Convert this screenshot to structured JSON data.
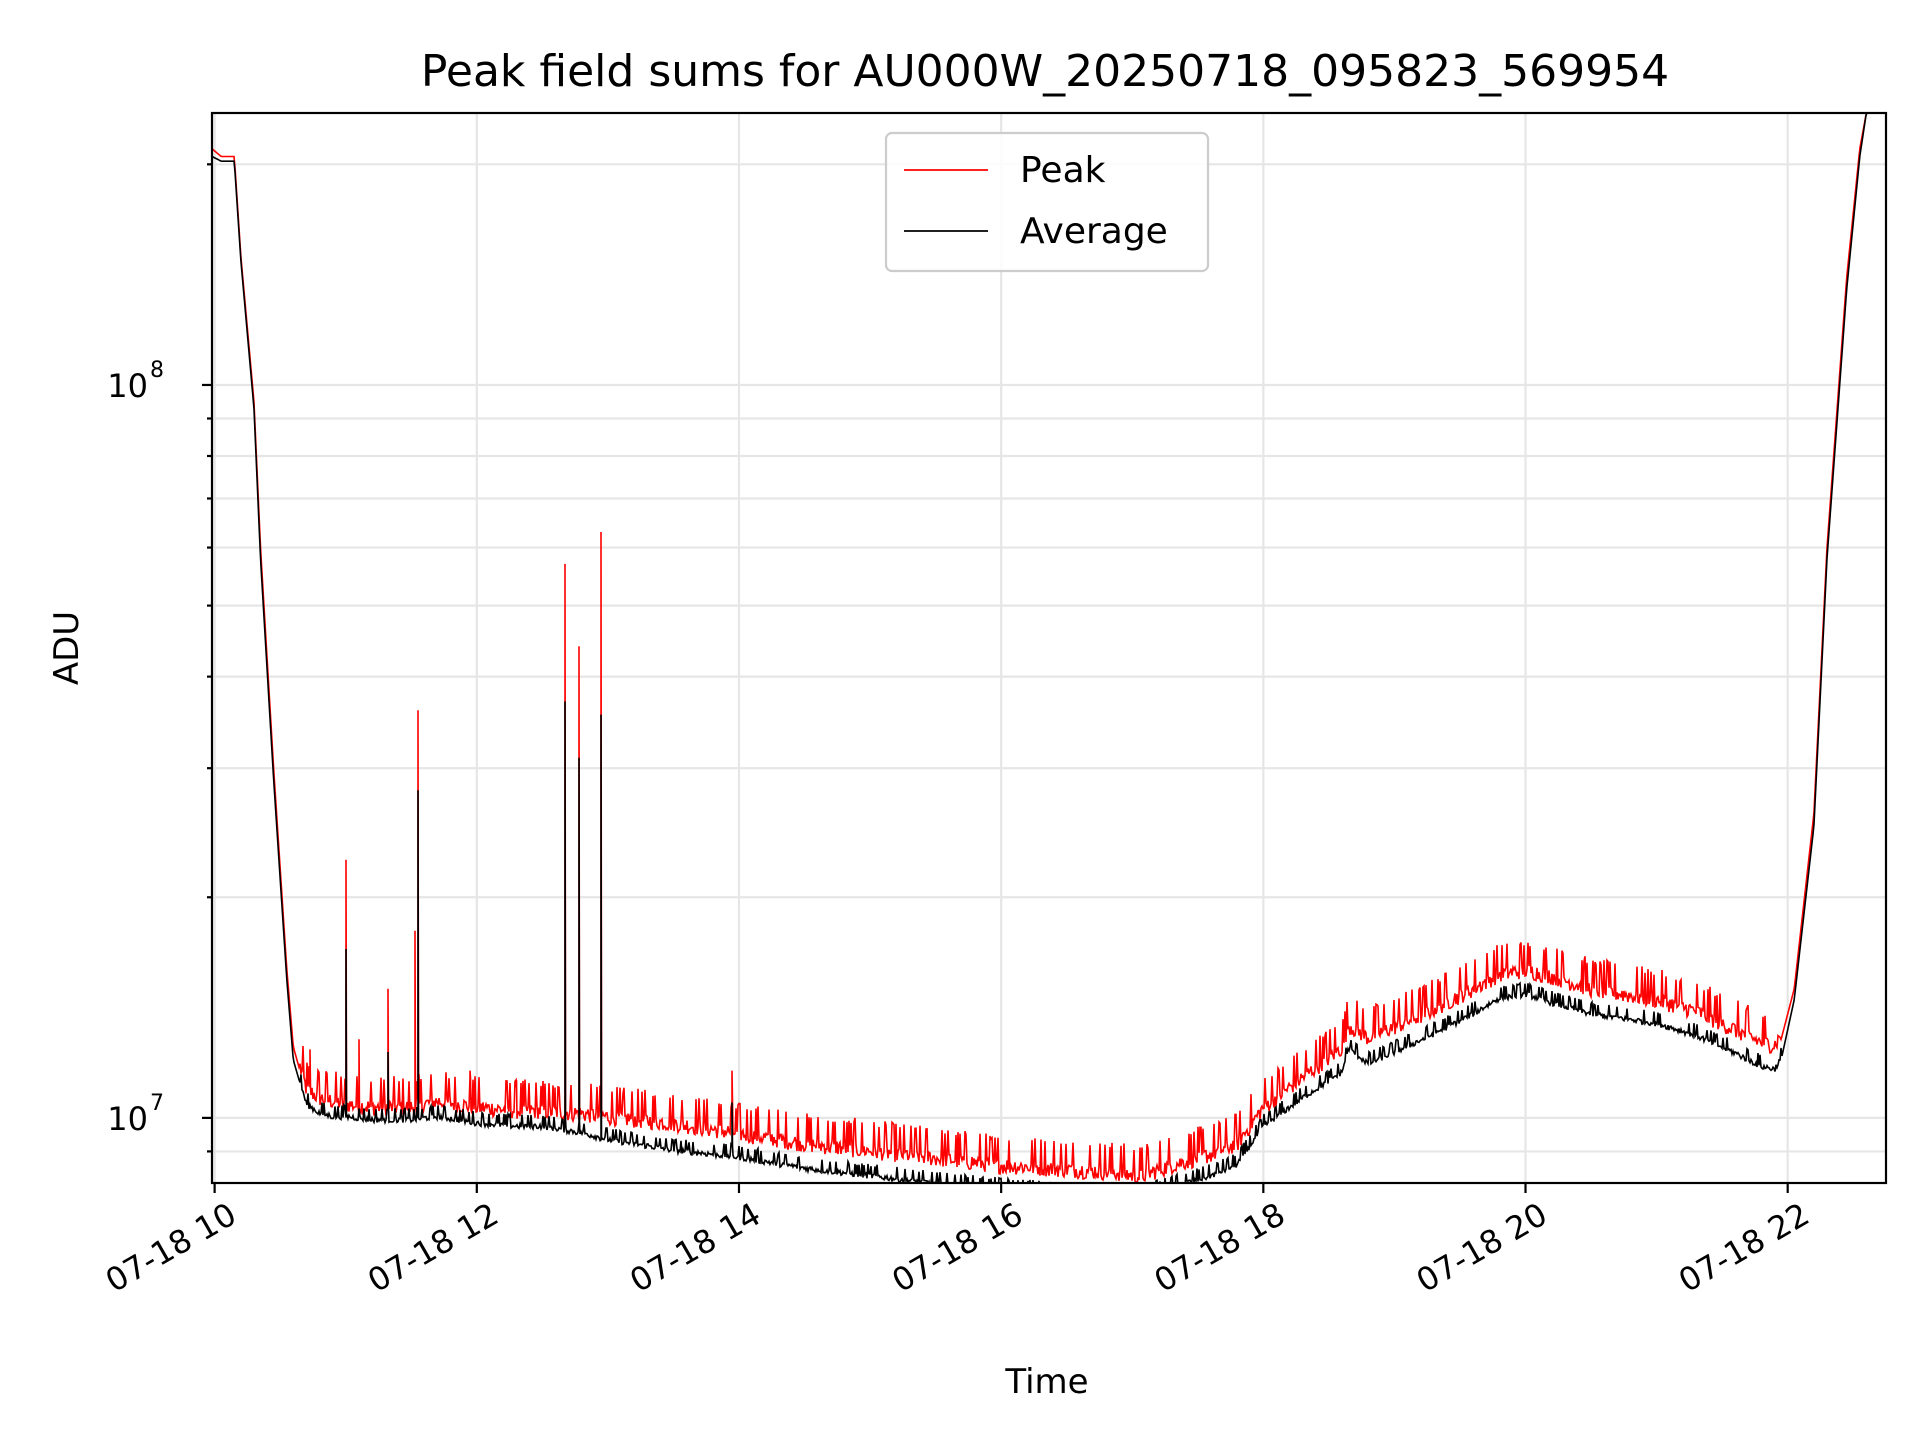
{
  "chart_data": {
    "type": "line",
    "title": "Peak field sums for AU000W_20250718_095823_569954",
    "xlabel": "Time",
    "ylabel": "ADU",
    "yscale": "log",
    "grid": true,
    "legend_placement": "upper-center",
    "x_tick_labels": [
      "07-18 10",
      "07-18 12",
      "07-18 14",
      "07-18 16",
      "07-18 18",
      "07-18 20",
      "07-18 22"
    ],
    "x_tick_hours": [
      10,
      12,
      14,
      16,
      18,
      20,
      22
    ],
    "xlim_hours": [
      9.98,
      22.75
    ],
    "ylim": [
      8150000,
      235000000
    ],
    "y_major_ticks": [
      {
        "value": 10000000,
        "base": "10",
        "exp": "7"
      },
      {
        "value": 100000000,
        "base": "10",
        "exp": "8"
      }
    ],
    "y_minor_ticks": [
      9000000,
      20000000,
      30000000,
      40000000,
      50000000,
      60000000,
      70000000,
      80000000,
      90000000,
      200000000
    ],
    "series": [
      {
        "name": "Peak",
        "color": "#ff0000",
        "hours": [
          9.98,
          10.05,
          10.15,
          10.2,
          10.3,
          10.35,
          10.45,
          10.55,
          10.6,
          10.7,
          10.8,
          10.9,
          11.0,
          11.2,
          11.5,
          11.7,
          12.0,
          12.3,
          12.5,
          12.8,
          13.0,
          13.5,
          14.0,
          14.5,
          15.0,
          15.5,
          16.0,
          16.5,
          16.9,
          17.05,
          17.3,
          17.6,
          17.8,
          18.0,
          18.3,
          18.6,
          18.65,
          18.8,
          19.2,
          19.6,
          19.8,
          20.0,
          20.2,
          20.5,
          21.0,
          21.3,
          21.6,
          21.8,
          21.9,
          21.95,
          22.05,
          22.2,
          22.3,
          22.45,
          22.55,
          22.6,
          22.75
        ],
        "values": [
          210000000,
          205000000,
          205000000,
          150000000,
          95000000,
          60000000,
          30000000,
          16000000,
          12500000,
          10800000,
          10500000,
          10400000,
          10300000,
          10200000,
          10200000,
          10400000,
          10200000,
          10100000,
          10100000,
          10000000,
          9900000,
          9700000,
          9400000,
          9100000,
          8900000,
          8700000,
          8500000,
          8400000,
          8300000,
          8200000,
          8500000,
          8800000,
          9100000,
          10200000,
          11200000,
          12300000,
          13200000,
          12700000,
          13600000,
          14800000,
          15500000,
          15700000,
          15400000,
          14800000,
          14300000,
          13800000,
          13000000,
          12500000,
          12400000,
          12800000,
          15000000,
          26000000,
          60000000,
          140000000,
          210000000,
          235000000,
          235000000
        ],
        "spikes": [
          {
            "hour": 10.73,
            "value": 12400000
          },
          {
            "hour": 11.0,
            "value": 22500000
          },
          {
            "hour": 11.1,
            "value": 12800000
          },
          {
            "hour": 11.32,
            "value": 15000000
          },
          {
            "hour": 11.53,
            "value": 18000000
          },
          {
            "hour": 11.55,
            "value": 36000000
          },
          {
            "hour": 11.95,
            "value": 11600000
          },
          {
            "hour": 12.3,
            "value": 11000000
          },
          {
            "hour": 12.6,
            "value": 11000000
          },
          {
            "hour": 12.67,
            "value": 57000000
          },
          {
            "hour": 12.78,
            "value": 44000000
          },
          {
            "hour": 12.95,
            "value": 63000000
          },
          {
            "hour": 13.95,
            "value": 11600000
          }
        ]
      },
      {
        "name": "Average",
        "color": "#000000",
        "hours": [
          9.98,
          10.05,
          10.15,
          10.2,
          10.3,
          10.35,
          10.45,
          10.55,
          10.6,
          10.7,
          10.8,
          10.9,
          11.0,
          11.2,
          11.5,
          11.7,
          12.0,
          12.3,
          12.5,
          12.8,
          13.0,
          13.5,
          14.0,
          14.5,
          15.0,
          15.5,
          16.0,
          16.5,
          16.9,
          17.05,
          17.3,
          17.6,
          17.8,
          18.0,
          18.3,
          18.6,
          18.65,
          18.8,
          19.2,
          19.6,
          19.8,
          20.0,
          20.2,
          20.5,
          21.0,
          21.3,
          21.6,
          21.8,
          21.9,
          21.95,
          22.05,
          22.2,
          22.3,
          22.45,
          22.55,
          22.6,
          22.75
        ],
        "values": [
          205000000,
          202000000,
          202000000,
          148000000,
          93000000,
          58000000,
          29000000,
          15500000,
          12000000,
          10400000,
          10100000,
          10000000,
          10000000,
          9900000,
          9900000,
          10000000,
          9800000,
          9700000,
          9700000,
          9500000,
          9300000,
          9000000,
          8800000,
          8500000,
          8300000,
          8100000,
          7950000,
          7850000,
          7800000,
          7750000,
          8000000,
          8300000,
          8600000,
          9700000,
          10600000,
          11500000,
          12400000,
          11800000,
          12700000,
          13800000,
          14500000,
          14700000,
          14300000,
          13800000,
          13400000,
          12900000,
          12200000,
          11700000,
          11600000,
          12000000,
          14500000,
          25000000,
          58000000,
          135000000,
          205000000,
          235000000,
          235000000
        ],
        "spikes": [
          {
            "hour": 11.0,
            "value": 17000000
          },
          {
            "hour": 11.32,
            "value": 12300000
          },
          {
            "hour": 11.55,
            "value": 28000000
          },
          {
            "hour": 12.67,
            "value": 37000000
          },
          {
            "hour": 12.78,
            "value": 31000000
          },
          {
            "hour": 12.95,
            "value": 35500000
          },
          {
            "hour": 13.95,
            "value": 10500000
          }
        ]
      }
    ]
  }
}
